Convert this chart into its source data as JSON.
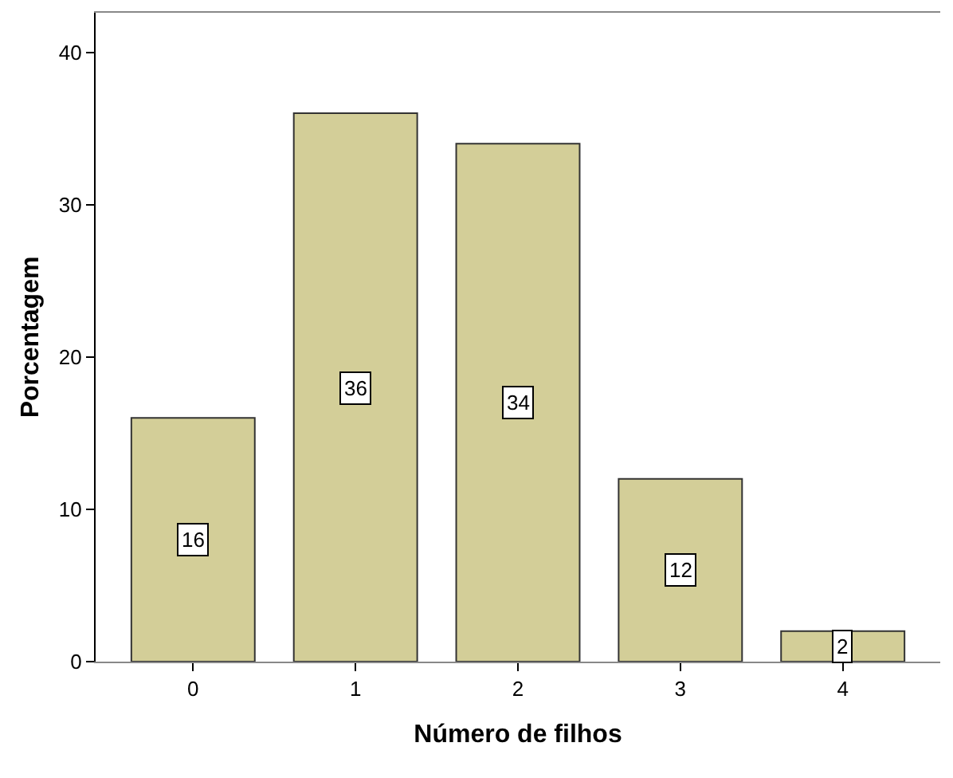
{
  "chart_data": {
    "type": "bar",
    "xlabel": "Número de filhos",
    "ylabel": "Porcentagem",
    "categories": [
      "0",
      "1",
      "2",
      "3",
      "4"
    ],
    "values": [
      16,
      36,
      34,
      12,
      2
    ],
    "color": "#d3ce98",
    "ylim": [
      0,
      42.6
    ],
    "yticks": [
      0,
      10,
      20,
      30,
      40
    ],
    "data_labels": true
  }
}
